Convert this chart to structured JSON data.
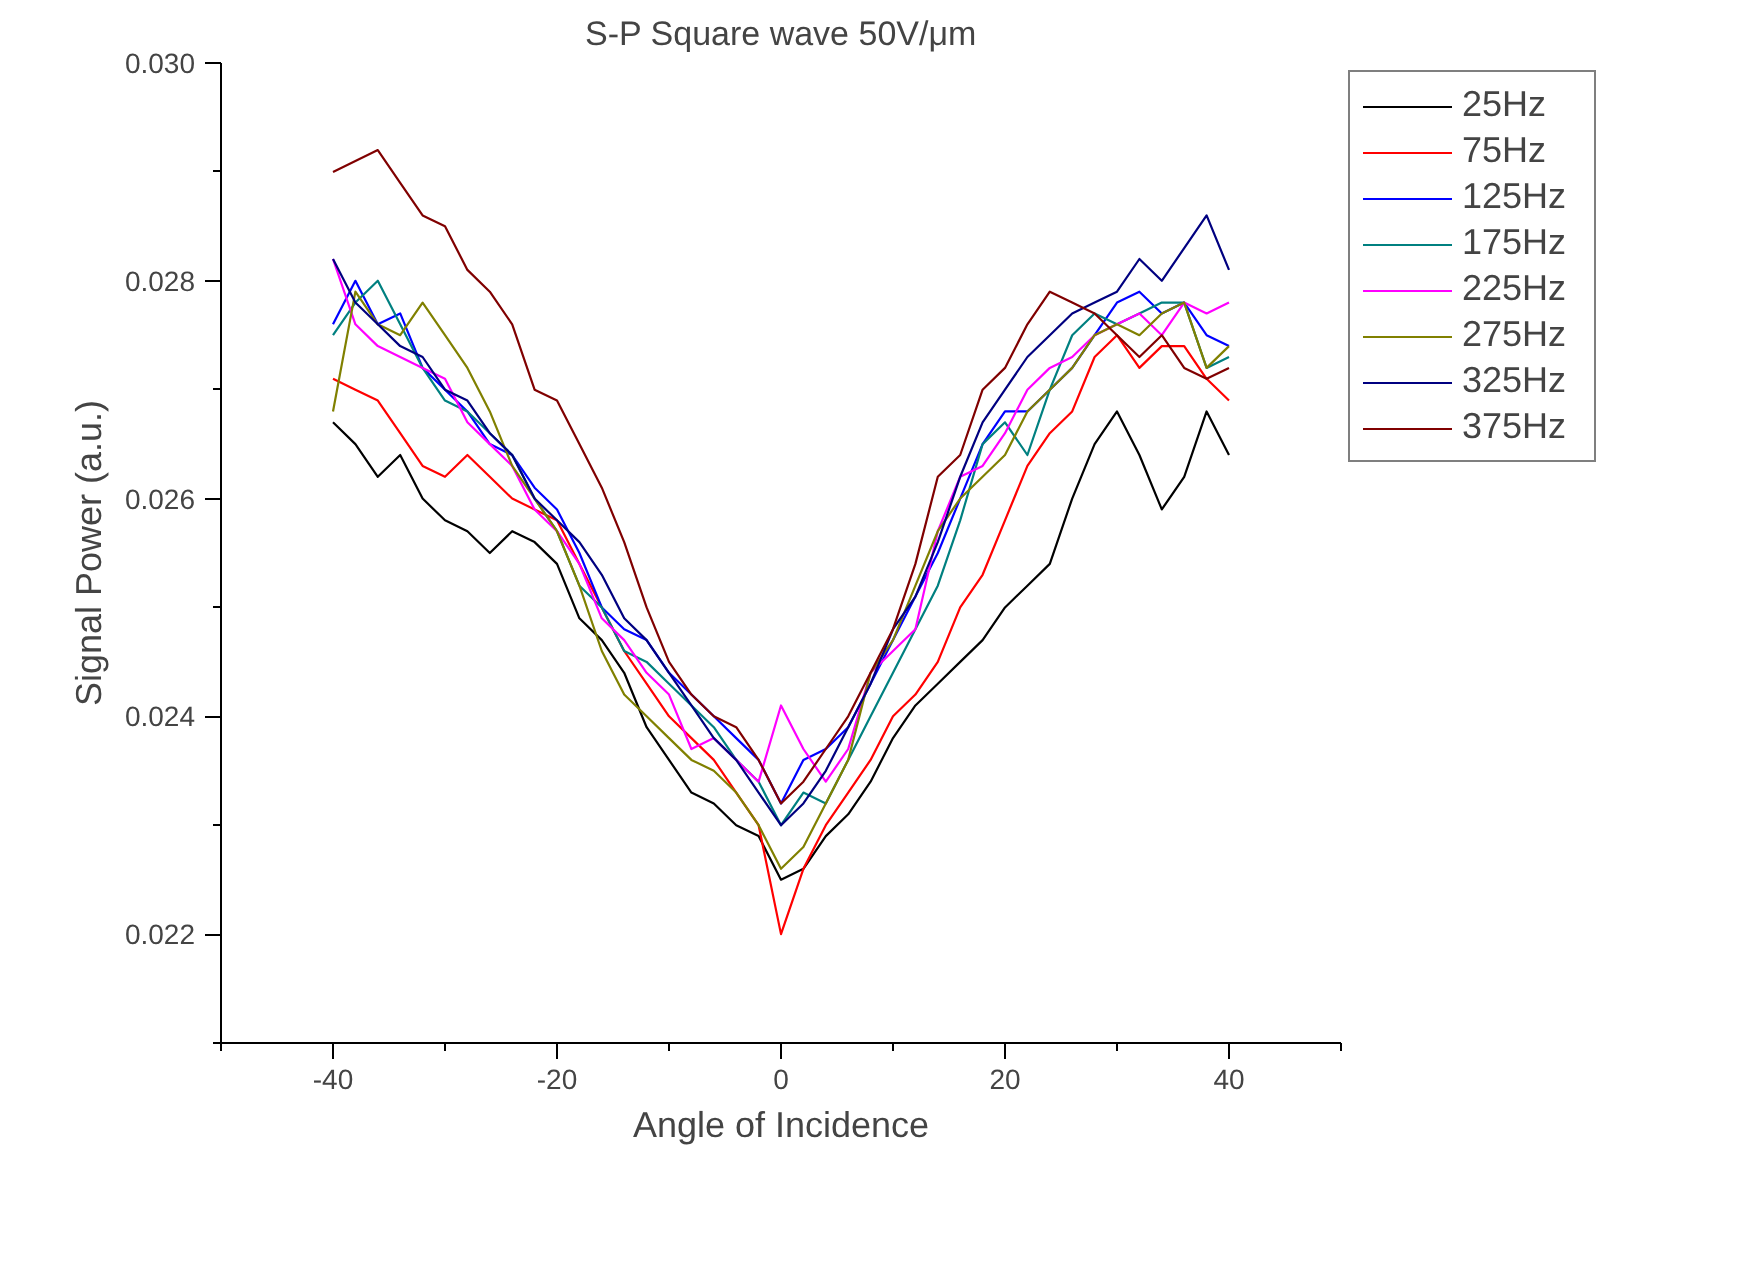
{
  "chart_data": {
    "type": "line",
    "title": "S-P Square wave 50V/μm",
    "xlabel": "Angle of Incidence",
    "ylabel": "Signal Power (a.u.)",
    "x": [
      -40,
      -38,
      -36,
      -34,
      -32,
      -30,
      -28,
      -26,
      -24,
      -22,
      -20,
      -18,
      -16,
      -14,
      -12,
      -10,
      -8,
      -6,
      -4,
      -2,
      0,
      2,
      4,
      6,
      8,
      10,
      12,
      14,
      16,
      18,
      20,
      22,
      24,
      26,
      28,
      30,
      32,
      34,
      36,
      38,
      40
    ],
    "xlim": [
      -50,
      50
    ],
    "xticks": [
      {
        "value": -50,
        "label": null
      },
      -40,
      {
        "value": -30,
        "label": null
      },
      -20,
      {
        "value": -10,
        "label": null
      },
      0,
      {
        "value": 10,
        "label": null
      },
      20,
      {
        "value": 30,
        "label": null
      },
      40,
      {
        "value": 50,
        "label": null
      }
    ],
    "ylim": [
      0.021,
      0.03
    ],
    "yticks": [
      {
        "value": 0.021,
        "label": null
      },
      0.022,
      {
        "value": 0.023,
        "label": null
      },
      0.024,
      {
        "value": 0.025,
        "label": null
      },
      0.026,
      {
        "value": 0.027,
        "label": null
      },
      0.028,
      {
        "value": 0.029,
        "label": null
      },
      {
        "value": 0.03,
        "label": "0.030"
      }
    ],
    "grid": false,
    "legend": "top right",
    "marker": "none",
    "line_style": "solid",
    "series": [
      {
        "name": "25Hz",
        "color": "#000000",
        "values": [
          0.0267,
          0.0265,
          0.0262,
          0.0264,
          0.026,
          0.0258,
          0.0257,
          0.0255,
          0.0257,
          0.0256,
          0.0254,
          0.0249,
          0.0247,
          0.0244,
          0.0239,
          0.0236,
          0.0233,
          0.0232,
          0.023,
          0.0229,
          0.0225,
          0.0226,
          0.0229,
          0.0231,
          0.0234,
          0.0238,
          0.0241,
          0.0243,
          0.0245,
          0.0247,
          0.025,
          0.0252,
          0.0254,
          0.026,
          0.0265,
          0.0268,
          0.0264,
          0.0259,
          0.0262,
          0.0268,
          0.0264
        ]
      },
      {
        "name": "75Hz",
        "color": "#ff0000",
        "values": [
          0.0271,
          0.027,
          0.0269,
          0.0266,
          0.0263,
          0.0262,
          0.0264,
          0.0262,
          0.026,
          0.0259,
          0.0258,
          0.0254,
          0.025,
          0.0246,
          0.0243,
          0.024,
          0.0238,
          0.0236,
          0.0233,
          0.023,
          0.022,
          0.0226,
          0.023,
          0.0233,
          0.0236,
          0.024,
          0.0242,
          0.0245,
          0.025,
          0.0253,
          0.0258,
          0.0263,
          0.0266,
          0.0268,
          0.0273,
          0.0275,
          0.0272,
          0.0274,
          0.0274,
          0.0271,
          0.0269
        ]
      },
      {
        "name": "125Hz",
        "color": "#0000ff",
        "values": [
          0.0276,
          0.028,
          0.0276,
          0.0277,
          0.0272,
          0.027,
          0.0268,
          0.0265,
          0.0264,
          0.0261,
          0.0259,
          0.0255,
          0.025,
          0.0248,
          0.0247,
          0.0244,
          0.0242,
          0.024,
          0.0238,
          0.0236,
          0.0232,
          0.0236,
          0.0237,
          0.0239,
          0.0243,
          0.0247,
          0.0251,
          0.0255,
          0.026,
          0.0265,
          0.0268,
          0.0268,
          0.027,
          0.0272,
          0.0275,
          0.0278,
          0.0279,
          0.0277,
          0.0278,
          0.0275,
          0.0274
        ]
      },
      {
        "name": "175Hz",
        "color": "#008080",
        "values": [
          0.0275,
          0.0278,
          0.028,
          0.0276,
          0.0272,
          0.0269,
          0.0268,
          0.0266,
          0.0264,
          0.026,
          0.0257,
          0.0252,
          0.025,
          0.0246,
          0.0245,
          0.0243,
          0.0241,
          0.0239,
          0.0236,
          0.0234,
          0.023,
          0.0233,
          0.0232,
          0.0236,
          0.024,
          0.0244,
          0.0248,
          0.0252,
          0.0258,
          0.0265,
          0.0267,
          0.0264,
          0.027,
          0.0275,
          0.0277,
          0.0276,
          0.0277,
          0.0278,
          0.0278,
          0.0272,
          0.0273
        ]
      },
      {
        "name": "225Hz",
        "color": "#ff00ff",
        "values": [
          0.0282,
          0.0276,
          0.0274,
          0.0273,
          0.0272,
          0.0271,
          0.0267,
          0.0265,
          0.0263,
          0.0259,
          0.0257,
          0.0254,
          0.0249,
          0.0247,
          0.0244,
          0.0242,
          0.0237,
          0.0238,
          0.0236,
          0.0234,
          0.0241,
          0.0237,
          0.0234,
          0.0237,
          0.0244,
          0.0246,
          0.0248,
          0.0257,
          0.0262,
          0.0263,
          0.0266,
          0.027,
          0.0272,
          0.0273,
          0.0275,
          0.0276,
          0.0277,
          0.0275,
          0.0278,
          0.0277,
          0.0278
        ]
      },
      {
        "name": "275Hz",
        "color": "#808000",
        "values": [
          0.0268,
          0.0279,
          0.0276,
          0.0275,
          0.0278,
          0.0275,
          0.0272,
          0.0268,
          0.0263,
          0.026,
          0.0257,
          0.0252,
          0.0246,
          0.0242,
          0.024,
          0.0238,
          0.0236,
          0.0235,
          0.0233,
          0.023,
          0.0226,
          0.0228,
          0.0232,
          0.0236,
          0.0244,
          0.0247,
          0.0252,
          0.0257,
          0.026,
          0.0262,
          0.0264,
          0.0268,
          0.027,
          0.0272,
          0.0275,
          0.0276,
          0.0275,
          0.0277,
          0.0278,
          0.0272,
          0.0274
        ]
      },
      {
        "name": "325Hz",
        "color": "#000080",
        "values": [
          0.0282,
          0.0278,
          0.0276,
          0.0274,
          0.0273,
          0.027,
          0.0269,
          0.0266,
          0.0264,
          0.026,
          0.0258,
          0.0256,
          0.0253,
          0.0249,
          0.0247,
          0.0244,
          0.0241,
          0.0238,
          0.0236,
          0.0233,
          0.023,
          0.0232,
          0.0235,
          0.0239,
          0.0243,
          0.0248,
          0.0251,
          0.0256,
          0.0262,
          0.0267,
          0.027,
          0.0273,
          0.0275,
          0.0277,
          0.0278,
          0.0279,
          0.0282,
          0.028,
          0.0283,
          0.0286,
          0.0281
        ]
      },
      {
        "name": "375Hz",
        "color": "#800000",
        "values": [
          0.029,
          0.0291,
          0.0292,
          0.0289,
          0.0286,
          0.0285,
          0.0281,
          0.0279,
          0.0276,
          0.027,
          0.0269,
          0.0265,
          0.0261,
          0.0256,
          0.025,
          0.0245,
          0.0242,
          0.024,
          0.0239,
          0.0236,
          0.0232,
          0.0234,
          0.0237,
          0.024,
          0.0244,
          0.0248,
          0.0254,
          0.0262,
          0.0264,
          0.027,
          0.0272,
          0.0276,
          0.0279,
          0.0278,
          0.0277,
          0.0275,
          0.0273,
          0.0275,
          0.0272,
          0.0271,
          0.0272
        ]
      }
    ]
  }
}
